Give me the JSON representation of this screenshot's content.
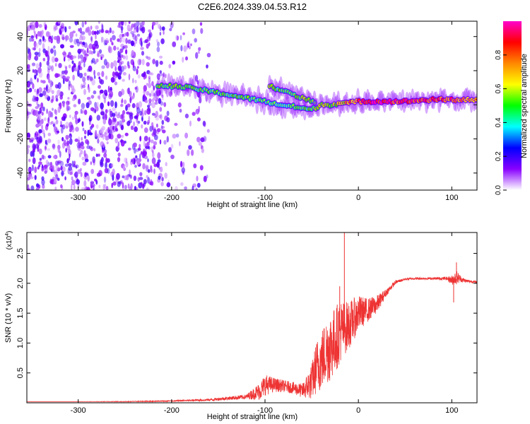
{
  "title": "C2E6.2024.339.04.53.R12",
  "chart_data": [
    {
      "type": "heatmap",
      "name": "spectrogram",
      "xlabel": "Height of straight line (km)",
      "ylabel": "Frequency (Hz)",
      "xlim": [
        -355,
        127
      ],
      "ylim": [
        -50,
        49
      ],
      "xticks": [
        -300,
        -200,
        -100,
        0,
        100
      ],
      "xtick_labels": [
        "-300",
        "-200",
        "-100",
        "0",
        "100"
      ],
      "yticks": [
        -40,
        -20,
        0,
        20,
        40
      ],
      "ytick_labels": [
        "-40",
        "-20",
        "0",
        "20",
        "40"
      ],
      "noise_region": {
        "x_from": -355,
        "x_to": -208,
        "sparse_to": -160,
        "level": 0.15
      },
      "signal_track": {
        "x": [
          -215,
          -200,
          -180,
          -160,
          -140,
          -120,
          -100,
          -85,
          -70,
          -60,
          -50,
          -40,
          -30,
          -20,
          -10,
          0,
          20,
          50,
          80,
          100,
          110,
          127
        ],
        "freq": [
          11,
          11,
          10,
          8,
          6,
          4,
          2,
          0,
          -1,
          -2,
          -3,
          0,
          0,
          1,
          1,
          2,
          2,
          2,
          3,
          3,
          3,
          3
        ],
        "amplitude": [
          0.45,
          0.5,
          0.45,
          0.45,
          0.45,
          0.45,
          0.4,
          0.4,
          0.45,
          0.45,
          0.45,
          0.55,
          0.5,
          0.6,
          0.7,
          0.75,
          0.9,
          0.85,
          0.8,
          0.8,
          0.75,
          0.65
        ]
      },
      "secondary_track": {
        "x": [
          -95,
          -85,
          -75,
          -65,
          -55,
          -45
        ],
        "freq": [
          11,
          9,
          7,
          5,
          3,
          1
        ],
        "amplitude": [
          0.5,
          0.45,
          0.45,
          0.5,
          0.5,
          0.45
        ]
      },
      "colorbar": {
        "label": "Normalized spectral amplitude",
        "range": [
          0,
          1
        ],
        "ticks": [
          0.0,
          0.2,
          0.4,
          0.6,
          0.8
        ],
        "tick_labels": [
          "0.0",
          "0.2",
          "0.4",
          "0.6",
          "0.8"
        ],
        "colors": [
          "#ffffff",
          "#8800ff",
          "#0000ff",
          "#00ffff",
          "#00ff00",
          "#ffff00",
          "#ff8800",
          "#ff0000",
          "#ff00cc"
        ]
      }
    },
    {
      "type": "line",
      "name": "snr",
      "xlabel": "Height of straight line (km)",
      "ylabel": "SNR (10 * v/v)",
      "multiplier": "(x10",
      "multiplier_exp": "4",
      "multiplier_close": ")",
      "xlim": [
        -355,
        127
      ],
      "ylim": [
        0,
        2.85
      ],
      "xticks": [
        -300,
        -200,
        -100,
        0,
        100
      ],
      "xtick_labels": [
        "-300",
        "-200",
        "-100",
        "0",
        "100"
      ],
      "yticks": [
        0.5,
        1.0,
        1.5,
        2.0,
        2.5
      ],
      "ytick_labels": [
        "0.5",
        "1.0",
        "1.5",
        "2.0",
        "2.5"
      ],
      "color": "#ee3333",
      "series": {
        "name": "SNR",
        "x": [
          -355,
          -300,
          -250,
          -200,
          -160,
          -120,
          -105,
          -100,
          -90,
          -80,
          -70,
          -60,
          -50,
          -45,
          -40,
          -35,
          -30,
          -25,
          -20,
          -15,
          -10,
          -5,
          0,
          10,
          20,
          30,
          40,
          50,
          60,
          80,
          95,
          100,
          105,
          110,
          115,
          127
        ],
        "y": [
          0.02,
          0.02,
          0.02,
          0.03,
          0.05,
          0.1,
          0.2,
          0.3,
          0.3,
          0.28,
          0.25,
          0.2,
          0.35,
          0.6,
          0.7,
          0.85,
          0.95,
          1.05,
          1.2,
          1.25,
          1.3,
          1.4,
          1.5,
          1.55,
          1.65,
          1.85,
          2.02,
          2.07,
          2.08,
          2.08,
          2.08,
          2.05,
          2.1,
          2.07,
          2.04,
          2.02
        ],
        "noise": [
          0.0,
          0.0,
          0.005,
          0.01,
          0.02,
          0.04,
          0.15,
          0.18,
          0.12,
          0.1,
          0.1,
          0.12,
          0.3,
          0.45,
          0.5,
          0.55,
          0.6,
          0.55,
          0.55,
          0.45,
          0.4,
          0.35,
          0.3,
          0.2,
          0.15,
          0.06,
          0.03,
          0.02,
          0.02,
          0.02,
          0.03,
          0.08,
          0.12,
          0.05,
          0.03,
          0.02
        ]
      },
      "spikes": [
        {
          "x": -15,
          "y": 2.85
        },
        {
          "x": -20,
          "y": 1.95
        },
        {
          "x": 105,
          "y": 2.35
        },
        {
          "x": 102,
          "y": 1.68
        }
      ]
    }
  ]
}
